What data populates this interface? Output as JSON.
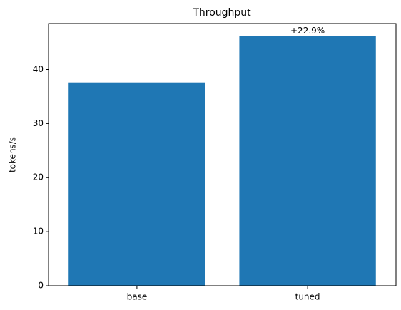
{
  "chart_data": {
    "type": "bar",
    "title": "Throughput",
    "ylabel": "tokens/s",
    "categories": [
      "base",
      "tuned"
    ],
    "values": [
      37.6,
      46.2
    ],
    "color": "#1f77b4",
    "ylim": [
      0,
      48.5
    ],
    "yticks": [
      0,
      10,
      20,
      30,
      40
    ],
    "grid": false,
    "annotations": [
      {
        "text": "+22.9%",
        "category": "tuned"
      }
    ]
  }
}
